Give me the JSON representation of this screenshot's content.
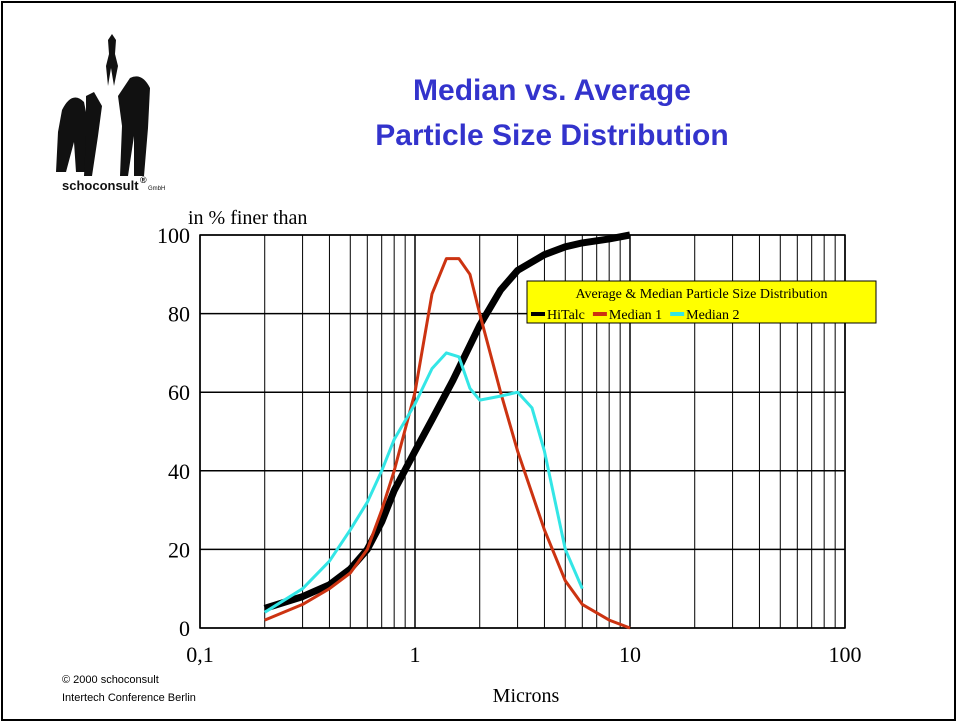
{
  "logo": {
    "name": "schoconsult",
    "mark": "®",
    "suffix": "GmbH"
  },
  "footer": [
    "© 2000 schoconsult",
    "Intertech Conference Berlin"
  ],
  "chart_data": {
    "type": "line",
    "title": [
      "Median vs. Average",
      "Particle Size Distribution"
    ],
    "ylabel": "in % finer than",
    "xlabel": "Microns",
    "xscale": "log",
    "xlim": [
      0.1,
      100
    ],
    "xticks": [
      {
        "value": 0.1,
        "label": "0,1"
      },
      1,
      10,
      100
    ],
    "ylim": [
      0,
      100
    ],
    "yticks": [
      0,
      20,
      40,
      60,
      80,
      100
    ],
    "grid": true,
    "minor_grid": true,
    "legend": "upper right",
    "legend_title": "Average & Median Particle Size Distribution",
    "series": [
      {
        "name": "HiTalc",
        "color": "#000000",
        "x": [
          0.2,
          0.3,
          0.4,
          0.5,
          0.6,
          0.7,
          0.8,
          1,
          1.2,
          1.5,
          2,
          2.5,
          3,
          4,
          5,
          6,
          8,
          10
        ],
        "values": [
          5,
          8,
          11,
          15,
          20,
          27,
          35,
          45,
          53,
          63,
          77,
          86,
          91,
          95,
          97,
          98,
          99,
          100
        ]
      },
      {
        "name": "Median 1",
        "color": "#cc3311",
        "x": [
          0.2,
          0.3,
          0.4,
          0.5,
          0.6,
          0.7,
          0.8,
          1,
          1.2,
          1.4,
          1.6,
          1.8,
          2,
          2.5,
          3,
          4,
          5,
          6,
          8,
          10
        ],
        "values": [
          2,
          6,
          10,
          14,
          20,
          30,
          40,
          60,
          85,
          94,
          94,
          90,
          80,
          60,
          45,
          25,
          12,
          6,
          2,
          0
        ]
      },
      {
        "name": "Median 2",
        "color": "#33e6e6",
        "x": [
          0.2,
          0.3,
          0.4,
          0.5,
          0.6,
          0.7,
          0.8,
          1,
          1.2,
          1.4,
          1.6,
          1.8,
          2,
          2.5,
          3,
          3.5,
          4,
          5,
          6
        ],
        "values": [
          4,
          10,
          17,
          25,
          32,
          40,
          48,
          57,
          66,
          70,
          69,
          61,
          58,
          59,
          60,
          56,
          45,
          20,
          10
        ]
      }
    ]
  }
}
